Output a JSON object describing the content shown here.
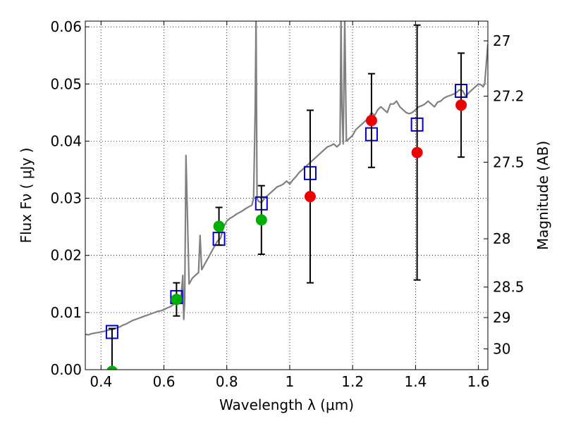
{
  "chart_data": {
    "type": "scatter",
    "xlabel": "Wavelength  λ (μm)",
    "ylabel": "Flux  Fν  ( μJy )",
    "y2label": "Magnitude (AB)",
    "xlim": [
      0.35,
      1.63
    ],
    "ylim": [
      0.0,
      0.061
    ],
    "grid": true,
    "x_ticks": [
      {
        "value": 0.4,
        "label": "0.4"
      },
      {
        "value": 0.6,
        "label": "0.6"
      },
      {
        "value": 0.8,
        "label": "0.8"
      },
      {
        "value": 1.0,
        "label": "1"
      },
      {
        "value": 1.2,
        "label": "1.2"
      },
      {
        "value": 1.4,
        "label": "1.4"
      },
      {
        "value": 1.6,
        "label": "1.6"
      }
    ],
    "y_ticks": [
      {
        "value": 0.0,
        "label": "0.00"
      },
      {
        "value": 0.01,
        "label": "0.01"
      },
      {
        "value": 0.02,
        "label": "0.02"
      },
      {
        "value": 0.03,
        "label": "0.03"
      },
      {
        "value": 0.04,
        "label": "0.04"
      },
      {
        "value": 0.05,
        "label": "0.05"
      },
      {
        "value": 0.06,
        "label": "0.06"
      }
    ],
    "y2_ticks": [
      {
        "value": 27,
        "label": "27"
      },
      {
        "value": 27.2,
        "label": "27.2"
      },
      {
        "value": 27.5,
        "label": "27.5"
      },
      {
        "value": 28,
        "label": "28"
      },
      {
        "value": 28.5,
        "label": "28.5"
      },
      {
        "value": 29,
        "label": "29"
      },
      {
        "value": 30,
        "label": "30"
      }
    ],
    "colors": {
      "model_line": "#808080",
      "model_marker": "#0000cc",
      "optical_points": "#00b000",
      "nir_points": "#ee0000",
      "errorbar": "#000000",
      "grid": "#000000"
    },
    "series": [
      {
        "kind": "line",
        "color_key": "model_line",
        "x": [
          0.35,
          0.36,
          0.37,
          0.38,
          0.39,
          0.4,
          0.41,
          0.42,
          0.43,
          0.44,
          0.45,
          0.46,
          0.47,
          0.48,
          0.49,
          0.5,
          0.51,
          0.52,
          0.53,
          0.54,
          0.55,
          0.56,
          0.57,
          0.58,
          0.59,
          0.6,
          0.61,
          0.62,
          0.63,
          0.64,
          0.65,
          0.655,
          0.66,
          0.663,
          0.666,
          0.67,
          0.68,
          0.69,
          0.7,
          0.71,
          0.715,
          0.72,
          0.73,
          0.74,
          0.75,
          0.76,
          0.77,
          0.78,
          0.79,
          0.8,
          0.81,
          0.82,
          0.83,
          0.84,
          0.85,
          0.86,
          0.87,
          0.88,
          0.885,
          0.89,
          0.893,
          0.896,
          0.9,
          0.91,
          0.92,
          0.93,
          0.94,
          0.95,
          0.96,
          0.97,
          0.98,
          0.99,
          1.0,
          1.01,
          1.02,
          1.03,
          1.04,
          1.05,
          1.06,
          1.07,
          1.08,
          1.09,
          1.1,
          1.11,
          1.12,
          1.13,
          1.14,
          1.15,
          1.16,
          1.163,
          1.166,
          1.17,
          1.175,
          1.18,
          1.19,
          1.2,
          1.21,
          1.22,
          1.23,
          1.24,
          1.25,
          1.26,
          1.27,
          1.28,
          1.29,
          1.3,
          1.31,
          1.32,
          1.33,
          1.34,
          1.35,
          1.36,
          1.37,
          1.38,
          1.39,
          1.4,
          1.41,
          1.42,
          1.43,
          1.44,
          1.45,
          1.46,
          1.47,
          1.48,
          1.49,
          1.5,
          1.51,
          1.52,
          1.53,
          1.54,
          1.55,
          1.56,
          1.57,
          1.58,
          1.59,
          1.6,
          1.61,
          1.615,
          1.62,
          1.63
        ],
        "y": [
          0.0062,
          0.0061,
          0.0063,
          0.0064,
          0.0065,
          0.0066,
          0.0067,
          0.0069,
          0.007,
          0.0071,
          0.0073,
          0.0075,
          0.0078,
          0.008,
          0.0083,
          0.0086,
          0.0088,
          0.009,
          0.0092,
          0.0094,
          0.0096,
          0.0098,
          0.01,
          0.0102,
          0.0103,
          0.0105,
          0.0108,
          0.011,
          0.0114,
          0.0118,
          0.0125,
          0.0132,
          0.0165,
          0.0088,
          0.012,
          0.0375,
          0.015,
          0.016,
          0.0165,
          0.017,
          0.0235,
          0.0175,
          0.0185,
          0.0195,
          0.0205,
          0.0215,
          0.0225,
          0.023,
          0.025,
          0.026,
          0.0265,
          0.0268,
          0.0272,
          0.0275,
          0.0278,
          0.0282,
          0.0285,
          0.0288,
          0.03,
          0.045,
          0.0615,
          0.03,
          0.0295,
          0.0292,
          0.03,
          0.0305,
          0.031,
          0.0315,
          0.032,
          0.0322,
          0.0325,
          0.033,
          0.0325,
          0.0332,
          0.0338,
          0.0345,
          0.035,
          0.0355,
          0.036,
          0.0365,
          0.037,
          0.0375,
          0.038,
          0.0385,
          0.039,
          0.0392,
          0.0395,
          0.039,
          0.0395,
          0.0615,
          0.046,
          0.0395,
          0.0615,
          0.04,
          0.0405,
          0.041,
          0.042,
          0.0425,
          0.043,
          0.0435,
          0.044,
          0.045,
          0.0445,
          0.0455,
          0.046,
          0.0455,
          0.045,
          0.0465,
          0.0465,
          0.047,
          0.046,
          0.0455,
          0.045,
          0.0448,
          0.045,
          0.0455,
          0.046,
          0.0462,
          0.0465,
          0.047,
          0.0465,
          0.046,
          0.0468,
          0.047,
          0.0475,
          0.0478,
          0.048,
          0.0482,
          0.0485,
          0.049,
          0.0488,
          0.0478,
          0.0485,
          0.049,
          0.0495,
          0.05,
          0.0498,
          0.0495,
          0.05,
          0.057
        ]
      },
      {
        "kind": "marker",
        "marker": "square",
        "color_key": "model_marker",
        "x": [
          0.435,
          0.64,
          0.775,
          0.91,
          1.065,
          1.26,
          1.405,
          1.545
        ],
        "y": [
          0.0066,
          0.0127,
          0.0229,
          0.0291,
          0.0344,
          0.0412,
          0.0429,
          0.0488
        ]
      },
      {
        "kind": "points",
        "marker": "circle",
        "color_key": "optical_points",
        "x": [
          0.435,
          0.64,
          0.775,
          0.91
        ],
        "y": [
          -0.0003,
          0.0123,
          0.0251,
          0.0262
        ],
        "yerr": [
          0.0075,
          0.0029,
          0.0033,
          0.006
        ]
      },
      {
        "kind": "points",
        "marker": "circle",
        "color_key": "nir_points",
        "x": [
          1.065,
          1.26,
          1.405,
          1.545
        ],
        "y": [
          0.0303,
          0.0436,
          0.038,
          0.0463
        ],
        "yerr": [
          0.0151,
          0.0082,
          0.0223,
          0.0091
        ]
      }
    ]
  }
}
